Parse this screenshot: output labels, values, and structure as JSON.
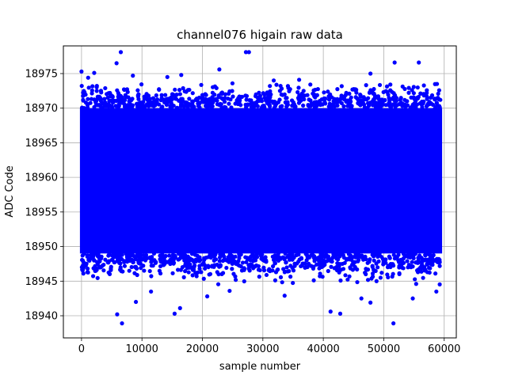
{
  "chart_data": {
    "type": "scatter",
    "title": "channel076 higain raw data",
    "xlabel": "sample number",
    "ylabel": "ADC Code",
    "xlim": [
      -3000,
      62000
    ],
    "ylim": [
      18936.8,
      18979.0
    ],
    "xticks": [
      0,
      10000,
      20000,
      30000,
      40000,
      50000,
      60000
    ],
    "yticks": [
      18940,
      18945,
      18950,
      18955,
      18960,
      18965,
      18970,
      18975
    ],
    "grid": true,
    "legend": "none",
    "marker_color": "#0000ff",
    "series": [
      {
        "n_samples": 59392,
        "x_range": [
          0,
          59392
        ],
        "bulk_y_range": [
          18949,
          18970
        ],
        "central_y": 18959,
        "points": [
          {
            "x": 0,
            "y": 18975.3
          },
          {
            "x": 1100,
            "y": 18974.4
          },
          {
            "x": 2100,
            "y": 18975.1
          },
          {
            "x": 5800,
            "y": 18976.5
          },
          {
            "x": 6500,
            "y": 18978.1
          },
          {
            "x": 8500,
            "y": 18974.7
          },
          {
            "x": 14200,
            "y": 18974.5
          },
          {
            "x": 16500,
            "y": 18974.8
          },
          {
            "x": 22800,
            "y": 18975.6
          },
          {
            "x": 27200,
            "y": 18978.1
          },
          {
            "x": 27700,
            "y": 18978.1
          },
          {
            "x": 31800,
            "y": 18974.0
          },
          {
            "x": 36000,
            "y": 18974.1
          },
          {
            "x": 47800,
            "y": 18975.0
          },
          {
            "x": 51800,
            "y": 18976.6
          },
          {
            "x": 55800,
            "y": 18976.6
          },
          {
            "x": 58800,
            "y": 18973.5
          },
          {
            "x": 5900,
            "y": 18940.2
          },
          {
            "x": 6700,
            "y": 18938.9
          },
          {
            "x": 9000,
            "y": 18942.0
          },
          {
            "x": 11500,
            "y": 18943.5
          },
          {
            "x": 15400,
            "y": 18940.3
          },
          {
            "x": 16300,
            "y": 18941.1
          },
          {
            "x": 20800,
            "y": 18942.8
          },
          {
            "x": 24500,
            "y": 18943.6
          },
          {
            "x": 33600,
            "y": 18942.9
          },
          {
            "x": 41200,
            "y": 18940.6
          },
          {
            "x": 42800,
            "y": 18940.3
          },
          {
            "x": 46300,
            "y": 18942.5
          },
          {
            "x": 47800,
            "y": 18941.9
          },
          {
            "x": 51600,
            "y": 18938.9
          },
          {
            "x": 54800,
            "y": 18942.5
          },
          {
            "x": 58700,
            "y": 18943.5
          }
        ]
      }
    ]
  }
}
